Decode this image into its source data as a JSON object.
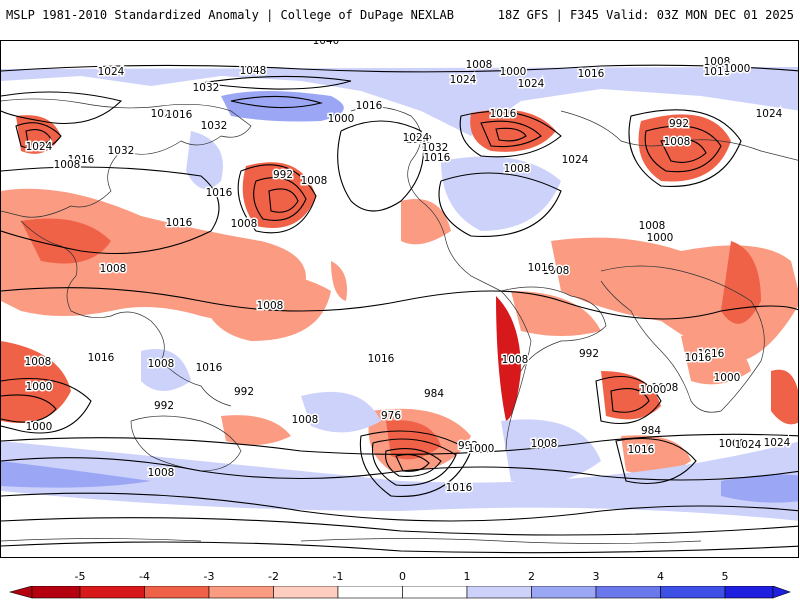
{
  "header": {
    "title": "MSLP 1981-2010 Standardized Anomaly | College of DuPage NEXLAB",
    "run": "18Z GFS | F345 Valid: 03Z MON DEC 01 2025"
  },
  "colors": {
    "neg5": "#b4000f",
    "neg4": "#d7191c",
    "neg3": "#f06248",
    "neg2": "#fa9b82",
    "neg1": "#fdcdbf",
    "zero": "#ffffff",
    "pos1": "#cdd2fb",
    "pos2": "#9ba7f4",
    "pos3": "#6a78eb",
    "pos4": "#3e4fe6",
    "pos5": "#1f1fe0",
    "contour": "#000000"
  },
  "isobar_labels": [
    {
      "text": "1032"
    },
    {
      "text": "1040"
    },
    {
      "text": "1048"
    },
    {
      "text": "1024"
    },
    {
      "text": "1032"
    },
    {
      "text": "1032"
    },
    {
      "text": "1024"
    },
    {
      "text": "1032"
    },
    {
      "text": "1016"
    },
    {
      "text": "1000"
    },
    {
      "text": "1016"
    },
    {
      "text": "992"
    },
    {
      "text": "1008"
    },
    {
      "text": "1016"
    },
    {
      "text": "1024"
    },
    {
      "text": "1024"
    },
    {
      "text": "1016"
    },
    {
      "text": "1032"
    },
    {
      "text": "1008"
    },
    {
      "text": "1000"
    },
    {
      "text": "1016"
    },
    {
      "text": "1024"
    },
    {
      "text": "1008"
    },
    {
      "text": "1016"
    },
    {
      "text": "1000"
    },
    {
      "text": "1024"
    },
    {
      "text": "992"
    },
    {
      "text": "1008"
    },
    {
      "text": "1024"
    },
    {
      "text": "1016"
    },
    {
      "text": "1008"
    },
    {
      "text": "1016"
    },
    {
      "text": "1032"
    },
    {
      "text": "1024"
    },
    {
      "text": "1016"
    },
    {
      "text": "1008"
    },
    {
      "text": "1008"
    },
    {
      "text": "1008"
    },
    {
      "text": "1008"
    },
    {
      "text": "1008"
    },
    {
      "text": "1016"
    },
    {
      "text": "1008"
    },
    {
      "text": "1000"
    },
    {
      "text": "1016"
    },
    {
      "text": "1008"
    },
    {
      "text": "1016"
    },
    {
      "text": "1000"
    },
    {
      "text": "992"
    },
    {
      "text": "992"
    },
    {
      "text": "1000"
    },
    {
      "text": "1016"
    },
    {
      "text": "1008"
    },
    {
      "text": "1016"
    },
    {
      "text": "984"
    },
    {
      "text": "976"
    },
    {
      "text": "1008"
    },
    {
      "text": "992"
    },
    {
      "text": "1000"
    },
    {
      "text": "1016"
    },
    {
      "text": "1008"
    },
    {
      "text": "1008"
    },
    {
      "text": "992"
    },
    {
      "text": "1000"
    },
    {
      "text": "984"
    },
    {
      "text": "1000"
    },
    {
      "text": "1016"
    },
    {
      "text": "1024"
    },
    {
      "text": "1008"
    },
    {
      "text": "1000"
    },
    {
      "text": "1008"
    },
    {
      "text": "1016"
    },
    {
      "text": "1024"
    }
  ],
  "colorbar": {
    "ticks": [
      "-5",
      "-4",
      "-3",
      "-2",
      "-1",
      "0",
      "1",
      "2",
      "3",
      "4",
      "5"
    ]
  }
}
